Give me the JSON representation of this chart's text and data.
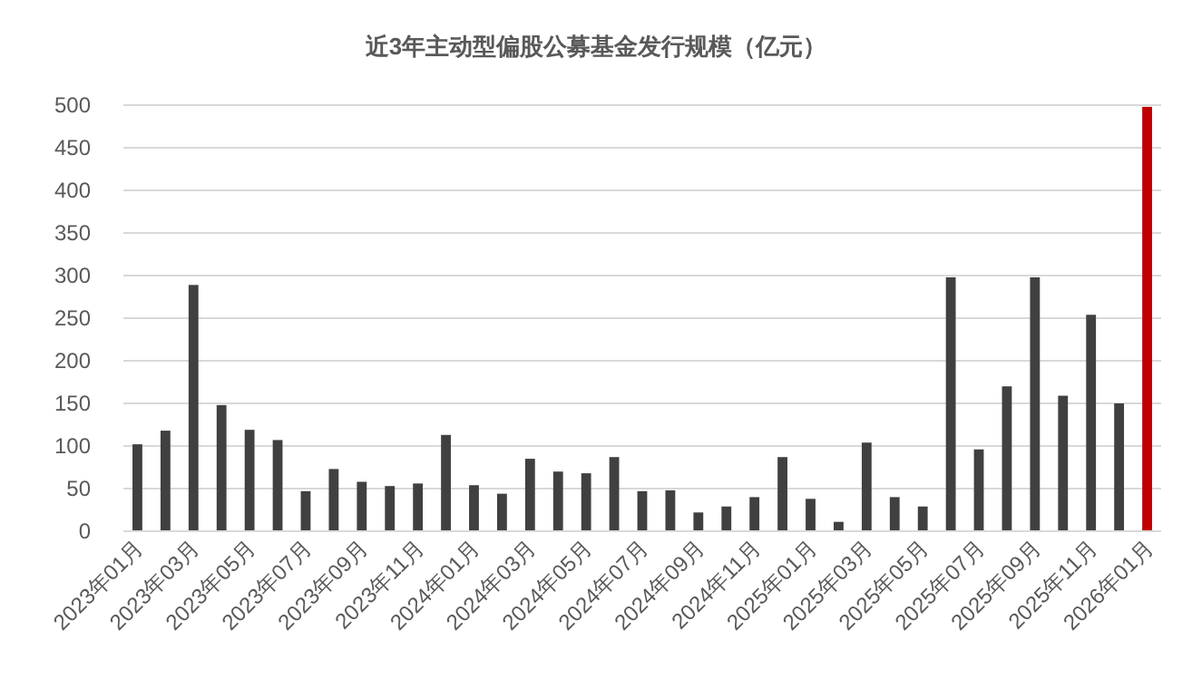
{
  "chart_data": {
    "type": "bar",
    "title": "近3年主动型偏股公募基金发行规模（亿元）",
    "categories": [
      "2023年01月",
      null,
      "2023年03月",
      null,
      "2023年05月",
      null,
      "2023年07月",
      null,
      "2023年09月",
      null,
      "2023年11月",
      null,
      "2024年01月",
      null,
      "2024年03月",
      null,
      "2024年05月",
      null,
      "2024年07月",
      null,
      "2024年09月",
      null,
      "2024年11月",
      null,
      "2025年01月",
      null,
      "2025年03月",
      null,
      "2025年05月",
      null,
      "2025年07月",
      null,
      "2025年09月",
      null,
      "2025年11月",
      null,
      "2026年01月"
    ],
    "values": [
      102,
      118,
      289,
      148,
      119,
      107,
      47,
      73,
      58,
      53,
      56,
      113,
      54,
      44,
      85,
      70,
      68,
      87,
      47,
      48,
      22,
      29,
      40,
      87,
      38,
      11,
      104,
      40,
      29,
      298,
      96,
      170,
      298,
      159,
      254,
      150,
      498
    ],
    "colors": [
      "#404040",
      "#404040",
      "#404040",
      "#404040",
      "#404040",
      "#404040",
      "#404040",
      "#404040",
      "#404040",
      "#404040",
      "#404040",
      "#404040",
      "#404040",
      "#404040",
      "#404040",
      "#404040",
      "#404040",
      "#404040",
      "#404040",
      "#404040",
      "#404040",
      "#404040",
      "#404040",
      "#404040",
      "#404040",
      "#404040",
      "#404040",
      "#404040",
      "#404040",
      "#404040",
      "#404040",
      "#404040",
      "#404040",
      "#404040",
      "#404040",
      "#404040",
      "#c00000"
    ],
    "ylim": [
      0,
      500
    ],
    "yticks": [
      0,
      50,
      100,
      150,
      200,
      250,
      300,
      350,
      400,
      450,
      500
    ],
    "grid": "y"
  }
}
